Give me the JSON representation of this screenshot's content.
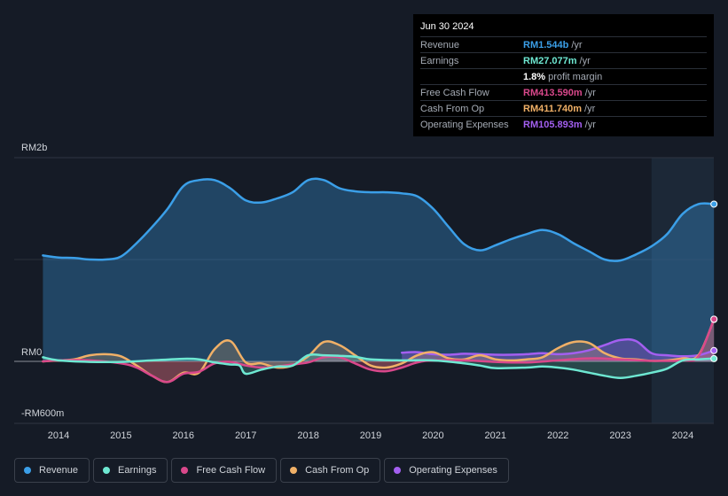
{
  "tooltip": {
    "date": "Jun 30 2024",
    "rows": [
      {
        "label": "Revenue",
        "value": "RM1.544b",
        "unit": "/yr",
        "color": "#3b9fe8"
      },
      {
        "label": "Earnings",
        "value": "RM27.077m",
        "unit": "/yr",
        "color": "#6ee8d2"
      },
      {
        "label": "",
        "value": "1.8%",
        "unit": "profit margin",
        "color": "#ffffff"
      },
      {
        "label": "Free Cash Flow",
        "value": "RM413.590m",
        "unit": "/yr",
        "color": "#d9488b"
      },
      {
        "label": "Cash From Op",
        "value": "RM411.740m",
        "unit": "/yr",
        "color": "#f0b067"
      },
      {
        "label": "Operating Expenses",
        "value": "RM105.893m",
        "unit": "/yr",
        "color": "#a35ff0"
      }
    ]
  },
  "chart_data": {
    "type": "area",
    "title": "",
    "y_axis_labels": {
      "top": "RM2b",
      "zero": "RM0",
      "bottom": "-RM600m"
    },
    "ylim": [
      -600,
      2000
    ],
    "x_range": [
      2013.7,
      2024.5
    ],
    "categories": [
      "2014",
      "2015",
      "2016",
      "2017",
      "2018",
      "2019",
      "2020",
      "2021",
      "2022",
      "2023",
      "2024"
    ],
    "highlight_start": 2023.5,
    "series": [
      {
        "name": "Revenue",
        "color": "#3b9fe8",
        "points": [
          [
            2013.75,
            1040
          ],
          [
            2014.0,
            1020
          ],
          [
            2014.25,
            1015
          ],
          [
            2014.5,
            1000
          ],
          [
            2014.75,
            1000
          ],
          [
            2015.0,
            1030
          ],
          [
            2015.25,
            1160
          ],
          [
            2015.5,
            1320
          ],
          [
            2015.75,
            1500
          ],
          [
            2016.0,
            1720
          ],
          [
            2016.25,
            1780
          ],
          [
            2016.5,
            1780
          ],
          [
            2016.75,
            1700
          ],
          [
            2017.0,
            1580
          ],
          [
            2017.25,
            1560
          ],
          [
            2017.5,
            1600
          ],
          [
            2017.75,
            1660
          ],
          [
            2018.0,
            1780
          ],
          [
            2018.25,
            1780
          ],
          [
            2018.5,
            1700
          ],
          [
            2018.75,
            1670
          ],
          [
            2019.0,
            1660
          ],
          [
            2019.25,
            1660
          ],
          [
            2019.5,
            1650
          ],
          [
            2019.75,
            1620
          ],
          [
            2020.0,
            1500
          ],
          [
            2020.25,
            1320
          ],
          [
            2020.5,
            1150
          ],
          [
            2020.75,
            1090
          ],
          [
            2021.0,
            1140
          ],
          [
            2021.25,
            1200
          ],
          [
            2021.5,
            1250
          ],
          [
            2021.75,
            1290
          ],
          [
            2022.0,
            1250
          ],
          [
            2022.25,
            1160
          ],
          [
            2022.5,
            1080
          ],
          [
            2022.75,
            1000
          ],
          [
            2023.0,
            990
          ],
          [
            2023.25,
            1050
          ],
          [
            2023.5,
            1130
          ],
          [
            2023.75,
            1250
          ],
          [
            2024.0,
            1450
          ],
          [
            2024.25,
            1544
          ],
          [
            2024.5,
            1544
          ]
        ]
      },
      {
        "name": "Earnings",
        "color": "#6ee8d2",
        "points": [
          [
            2013.75,
            40
          ],
          [
            2014.0,
            10
          ],
          [
            2014.5,
            -5
          ],
          [
            2015.0,
            -5
          ],
          [
            2015.5,
            10
          ],
          [
            2016.0,
            25
          ],
          [
            2016.25,
            20
          ],
          [
            2016.5,
            -10
          ],
          [
            2016.75,
            -30
          ],
          [
            2016.9,
            -40
          ],
          [
            2017.0,
            -120
          ],
          [
            2017.25,
            -80
          ],
          [
            2017.5,
            -50
          ],
          [
            2017.75,
            -40
          ],
          [
            2018.0,
            60
          ],
          [
            2018.25,
            60
          ],
          [
            2018.5,
            55
          ],
          [
            2018.75,
            45
          ],
          [
            2019.0,
            20
          ],
          [
            2019.5,
            10
          ],
          [
            2020.0,
            10
          ],
          [
            2020.5,
            -20
          ],
          [
            2020.75,
            -40
          ],
          [
            2021.0,
            -65
          ],
          [
            2021.5,
            -60
          ],
          [
            2021.75,
            -50
          ],
          [
            2022.0,
            -60
          ],
          [
            2022.25,
            -80
          ],
          [
            2022.5,
            -110
          ],
          [
            2022.75,
            -140
          ],
          [
            2023.0,
            -160
          ],
          [
            2023.25,
            -140
          ],
          [
            2023.5,
            -110
          ],
          [
            2023.75,
            -70
          ],
          [
            2024.0,
            10
          ],
          [
            2024.25,
            20
          ],
          [
            2024.5,
            27
          ]
        ]
      },
      {
        "name": "Free Cash Flow",
        "color": "#d9488b",
        "points": [
          [
            2013.75,
            0
          ],
          [
            2014.0,
            10
          ],
          [
            2014.5,
            10
          ],
          [
            2015.0,
            -20
          ],
          [
            2015.25,
            -60
          ],
          [
            2015.5,
            -140
          ],
          [
            2015.75,
            -200
          ],
          [
            2016.0,
            -120
          ],
          [
            2016.25,
            -100
          ],
          [
            2016.5,
            -20
          ],
          [
            2016.75,
            -5
          ],
          [
            2017.0,
            -40
          ],
          [
            2017.25,
            -60
          ],
          [
            2017.5,
            -50
          ],
          [
            2017.75,
            -30
          ],
          [
            2018.0,
            -10
          ],
          [
            2018.25,
            40
          ],
          [
            2018.5,
            40
          ],
          [
            2018.75,
            -20
          ],
          [
            2019.0,
            -80
          ],
          [
            2019.25,
            -95
          ],
          [
            2019.5,
            -60
          ],
          [
            2019.75,
            -10
          ],
          [
            2020.0,
            10
          ],
          [
            2020.5,
            10
          ],
          [
            2021.0,
            -5
          ],
          [
            2021.5,
            -10
          ],
          [
            2022.0,
            10
          ],
          [
            2022.5,
            30
          ],
          [
            2023.0,
            20
          ],
          [
            2023.5,
            5
          ],
          [
            2024.0,
            10
          ],
          [
            2024.25,
            50
          ],
          [
            2024.5,
            414
          ]
        ]
      },
      {
        "name": "Cash From Op",
        "color": "#f0b067",
        "points": [
          [
            2013.75,
            0
          ],
          [
            2014.0,
            10
          ],
          [
            2014.25,
            20
          ],
          [
            2014.5,
            60
          ],
          [
            2014.75,
            70
          ],
          [
            2015.0,
            50
          ],
          [
            2015.25,
            -40
          ],
          [
            2015.5,
            -140
          ],
          [
            2015.75,
            -200
          ],
          [
            2016.0,
            -110
          ],
          [
            2016.25,
            -110
          ],
          [
            2016.5,
            120
          ],
          [
            2016.75,
            200
          ],
          [
            2017.0,
            -10
          ],
          [
            2017.25,
            -20
          ],
          [
            2017.5,
            -60
          ],
          [
            2017.75,
            -40
          ],
          [
            2018.0,
            50
          ],
          [
            2018.25,
            190
          ],
          [
            2018.5,
            160
          ],
          [
            2018.75,
            60
          ],
          [
            2019.0,
            -40
          ],
          [
            2019.25,
            -60
          ],
          [
            2019.5,
            -20
          ],
          [
            2019.75,
            60
          ],
          [
            2020.0,
            90
          ],
          [
            2020.25,
            30
          ],
          [
            2020.5,
            20
          ],
          [
            2020.75,
            60
          ],
          [
            2021.0,
            20
          ],
          [
            2021.25,
            10
          ],
          [
            2021.5,
            20
          ],
          [
            2021.75,
            40
          ],
          [
            2022.0,
            130
          ],
          [
            2022.25,
            190
          ],
          [
            2022.5,
            180
          ],
          [
            2022.75,
            80
          ],
          [
            2023.0,
            30
          ],
          [
            2023.25,
            20
          ],
          [
            2023.5,
            5
          ],
          [
            2023.75,
            10
          ],
          [
            2024.0,
            30
          ],
          [
            2024.25,
            60
          ],
          [
            2024.5,
            412
          ]
        ]
      },
      {
        "name": "Operating Expenses",
        "color": "#a35ff0",
        "points": [
          [
            2019.5,
            85
          ],
          [
            2019.75,
            90
          ],
          [
            2020.0,
            70
          ],
          [
            2020.25,
            65
          ],
          [
            2020.5,
            75
          ],
          [
            2020.75,
            70
          ],
          [
            2021.0,
            65
          ],
          [
            2021.25,
            65
          ],
          [
            2021.5,
            70
          ],
          [
            2021.75,
            80
          ],
          [
            2022.0,
            70
          ],
          [
            2022.25,
            80
          ],
          [
            2022.5,
            110
          ],
          [
            2022.75,
            160
          ],
          [
            2023.0,
            210
          ],
          [
            2023.25,
            200
          ],
          [
            2023.5,
            80
          ],
          [
            2023.75,
            60
          ],
          [
            2024.0,
            50
          ],
          [
            2024.25,
            60
          ],
          [
            2024.5,
            106
          ]
        ]
      }
    ]
  },
  "legend": [
    {
      "label": "Revenue",
      "color": "#3b9fe8"
    },
    {
      "label": "Earnings",
      "color": "#6ee8d2"
    },
    {
      "label": "Free Cash Flow",
      "color": "#d9488b"
    },
    {
      "label": "Cash From Op",
      "color": "#f0b067"
    },
    {
      "label": "Operating Expenses",
      "color": "#a35ff0"
    }
  ]
}
